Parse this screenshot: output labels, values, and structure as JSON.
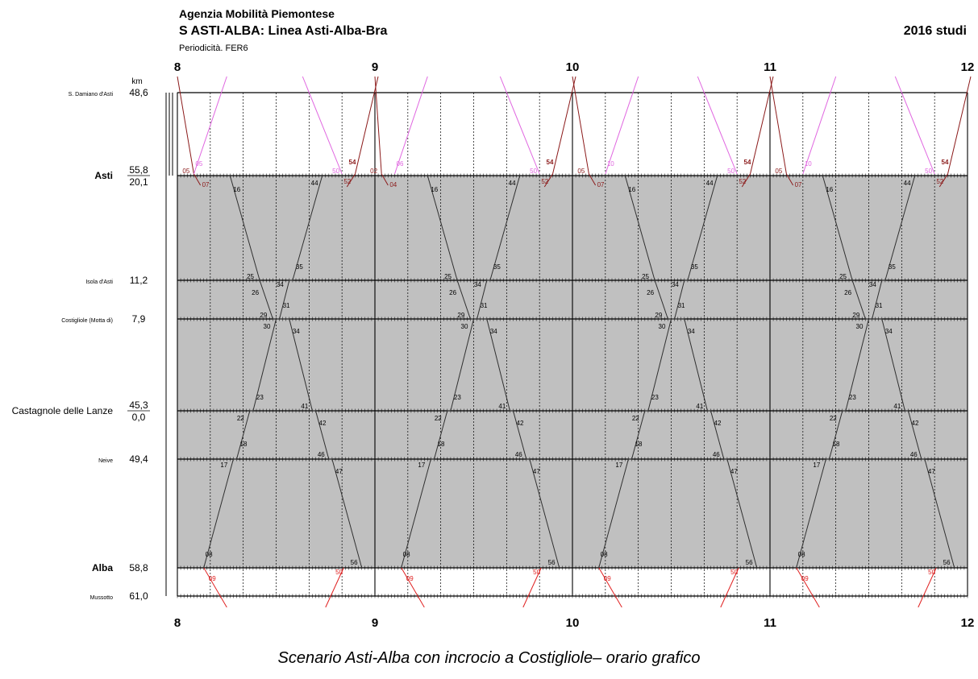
{
  "header": {
    "agency": "Agenzia Mobilità Piemontese",
    "title": "S ASTI-ALBA: Linea Asti-Alba-Bra",
    "periodicity": "Periodicità. FER6",
    "year_label": "2016 studi"
  },
  "caption": "Scenario Asti-Alba con incrocio a Costigliole– orario grafico",
  "chart_data": {
    "type": "line",
    "chart_kind": "train graph (orario grafico)",
    "x_unit": "hour",
    "x_range": [
      8,
      12
    ],
    "hour_labels": [
      "8",
      "9",
      "10",
      "11",
      "12"
    ],
    "km_header": "km",
    "grid": true,
    "background_color": "#c0c0c0",
    "stations": [
      {
        "id": "sdamiano",
        "name": "S. Damiano d'Asti",
        "km": [
          "48,6"
        ],
        "bold": false,
        "size": "small"
      },
      {
        "id": "asti",
        "name": "Asti",
        "km": [
          "55,8",
          "20,1"
        ],
        "bold": true,
        "size": "large"
      },
      {
        "id": "isola",
        "name": "Isola d'Asti",
        "km": [
          "11,2"
        ],
        "bold": false,
        "size": "small"
      },
      {
        "id": "costigliole",
        "name": "Costigliole (Motta di)",
        "km": [
          "7,9"
        ],
        "bold": false,
        "size": "small"
      },
      {
        "id": "castagnole",
        "name": "Castagnole delle Lanze",
        "km": [
          "45,3",
          "0,0"
        ],
        "bold": false,
        "size": "large"
      },
      {
        "id": "neive",
        "name": "Neive",
        "km": [
          "49,4"
        ],
        "bold": false,
        "size": "small"
      },
      {
        "id": "alba",
        "name": "Alba",
        "km": [
          "58,8"
        ],
        "bold": true,
        "size": "large"
      },
      {
        "id": "mussotto",
        "name": "Mussotto",
        "km": [
          "61,0"
        ],
        "bold": false,
        "size": "small"
      }
    ],
    "series": [
      {
        "color": "#303030",
        "direction": "Asti-Alba",
        "base_hours": [
          8,
          9,
          10,
          11
        ],
        "stops": [
          {
            "station": "asti",
            "minute": 16
          },
          {
            "station": "isola",
            "minute": 25
          },
          {
            "station": "costigliole",
            "minute": 29
          },
          {
            "station": "costigliole",
            "minute": 34
          },
          {
            "station": "castagnole",
            "minute": 41
          },
          {
            "station": "castagnole",
            "minute": 42
          },
          {
            "station": "neive",
            "minute": 46
          },
          {
            "station": "neive",
            "minute": 47
          },
          {
            "station": "alba",
            "minute": 56
          }
        ]
      },
      {
        "color": "#303030",
        "direction": "Alba-Asti",
        "base_hours": [
          8,
          9,
          10,
          11
        ],
        "stops": [
          {
            "station": "alba",
            "minute": 8
          },
          {
            "station": "neive",
            "minute": 17
          },
          {
            "station": "neive",
            "minute": 18
          },
          {
            "station": "castagnole",
            "minute": 22
          },
          {
            "station": "castagnole",
            "minute": 23
          },
          {
            "station": "costigliole",
            "minute": 30
          },
          {
            "station": "costigliole",
            "minute": 31
          },
          {
            "station": "isola",
            "minute": 34
          },
          {
            "station": "isola",
            "minute": 35
          },
          {
            "station": "asti",
            "minute": 44
          }
        ]
      },
      {
        "color": "#8b1a1a",
        "direction": "S. Damiano-Asti",
        "base_hours": [
          8,
          9,
          10,
          11
        ],
        "stop_minutes_by_hour": [
          [
            0,
            5,
            7
          ],
          [
            0,
            2,
            4
          ],
          [
            0,
            5,
            7
          ],
          [
            0,
            5,
            7
          ]
        ],
        "stations": [
          "sdamiano",
          "asti",
          "asti"
        ]
      },
      {
        "color": "#8b1a1a",
        "direction": "Asti-S. Damiano",
        "base_hours": [
          8,
          9,
          10,
          11
        ],
        "stop_minutes": [
          52,
          54,
          60
        ],
        "stations": [
          "asti",
          "asti",
          "sdamiano"
        ]
      },
      {
        "color": "#e066e0",
        "direction": "Asti-S. Damiano (pink)",
        "base_hours": [
          8,
          9,
          10,
          11
        ],
        "stop_minutes_by_hour": [
          [
            5,
            15
          ],
          [
            6,
            16
          ],
          [
            10,
            20
          ],
          [
            10,
            20
          ]
        ],
        "stations": [
          "asti",
          "sdamiano"
        ]
      },
      {
        "color": "#e066e0",
        "direction": "S. Damiano-Asti (pink)",
        "base_hours": [
          8,
          9,
          10,
          11
        ],
        "stop_minutes": [
          40,
          50
        ],
        "stations": [
          "sdamiano",
          "asti"
        ]
      },
      {
        "color": "#e02020",
        "direction": "Alba-Mussotto",
        "base_hours": [
          8,
          9,
          10,
          11
        ],
        "stop_minutes": [
          9,
          15
        ],
        "stations": [
          "alba",
          "mussotto"
        ]
      },
      {
        "color": "#e02020",
        "direction": "Mussotto-Alba",
        "base_hours": [
          8,
          9,
          10,
          11
        ],
        "stop_minutes": [
          50,
          45
        ],
        "stations": [
          "alba",
          "mussotto"
        ]
      }
    ],
    "time_labels": [
      {
        "station": "asti",
        "minute": 16,
        "text": "16"
      },
      {
        "station": "isola",
        "minute": 25,
        "text": "25"
      },
      {
        "station": "costigliole",
        "minute": 29,
        "text": "29"
      },
      {
        "station": "costigliole",
        "minute": 34,
        "text": "34"
      },
      {
        "station": "castagnole",
        "minute": 41,
        "text": "41"
      },
      {
        "station": "castagnole",
        "minute": 42,
        "text": "42"
      },
      {
        "station": "neive",
        "minute": 46,
        "text": "46"
      },
      {
        "station": "neive",
        "minute": 47,
        "text": "47"
      },
      {
        "station": "alba",
        "minute": 56,
        "text": "56"
      },
      {
        "station": "alba",
        "minute": 8,
        "text": "08"
      },
      {
        "station": "neive",
        "minute": 17,
        "text": "17"
      },
      {
        "station": "neive",
        "minute": 18,
        "text": "18"
      },
      {
        "station": "castagnole",
        "minute": 22,
        "text": "22"
      },
      {
        "station": "castagnole",
        "minute": 23,
        "text": "23"
      },
      {
        "station": "costigliole",
        "minute": 30,
        "text": "30"
      },
      {
        "station": "costigliole",
        "minute": 31,
        "text": "31"
      },
      {
        "station": "isola",
        "minute": 34,
        "text": "34"
      },
      {
        "station": "isola",
        "minute": 35,
        "text": "35"
      },
      {
        "station": "asti",
        "minute": 44,
        "text": "44"
      },
      {
        "station": "isola",
        "minute": 26,
        "text": "26"
      }
    ],
    "dark_red_labels_by_hour": [
      [
        "05",
        "07",
        "52",
        "54"
      ],
      [
        "02",
        "04",
        "52",
        "54"
      ],
      [
        "05",
        "07",
        "52",
        "54"
      ],
      [
        "05",
        "07",
        "52",
        "54"
      ]
    ],
    "pink_labels_by_hour": [
      [
        "05",
        "50"
      ],
      [
        "06",
        "50"
      ],
      [
        "10",
        "50"
      ],
      [
        "10",
        "50"
      ]
    ],
    "red_labels": [
      "09",
      "50"
    ]
  }
}
